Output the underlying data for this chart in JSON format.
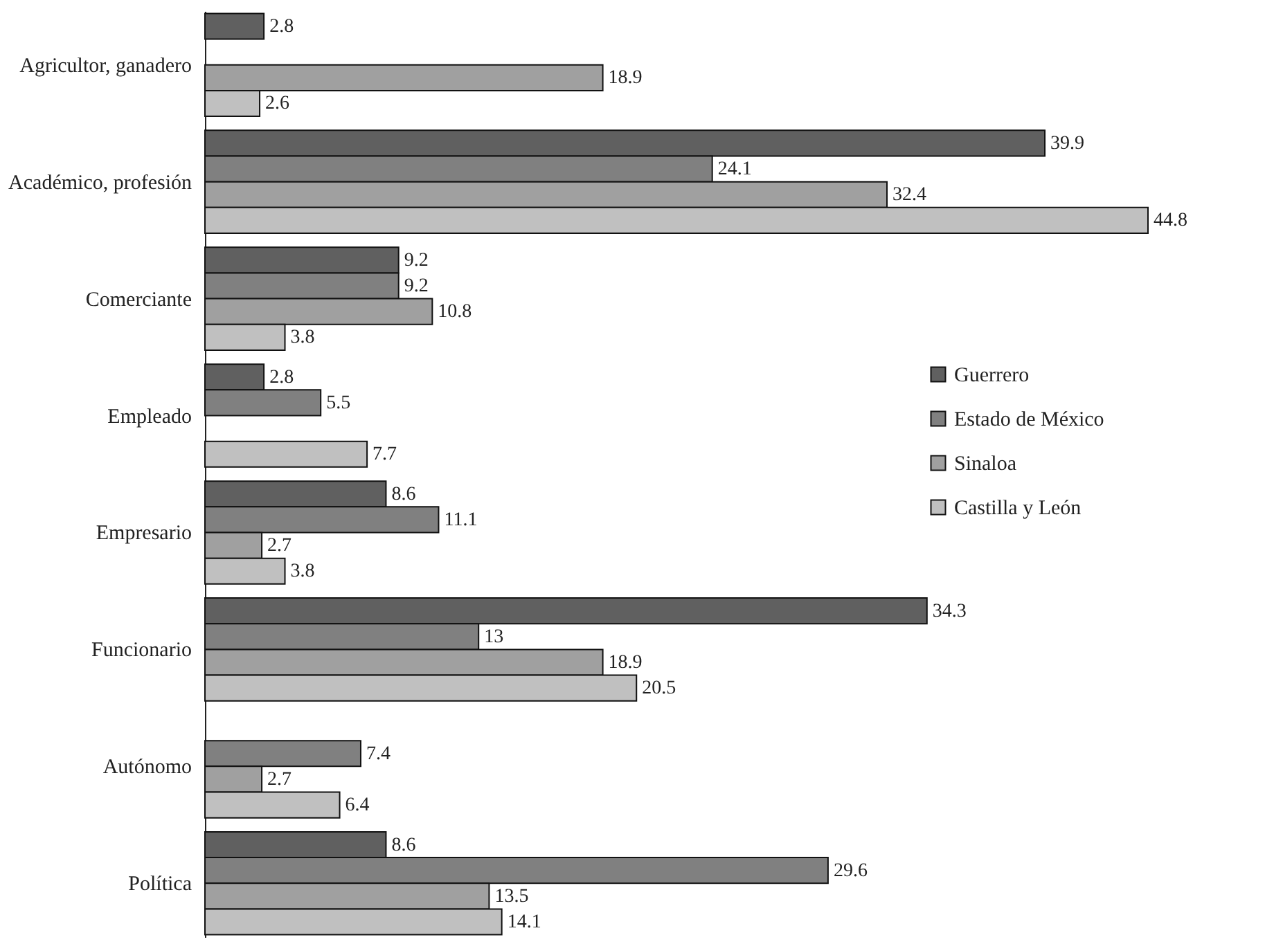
{
  "chart_data": {
    "type": "bar",
    "orientation": "horizontal",
    "data_labels": true,
    "legend": "right",
    "grid": false,
    "categories": [
      "Agricultor, ganadero",
      "Académico, profesión",
      "Comerciante",
      "Empleado",
      "Empresario",
      "Funcionario",
      "Autónomo",
      "Política"
    ],
    "series": [
      {
        "name": "Guerrero",
        "color": "#606060",
        "values": [
          2.8,
          39.9,
          9.2,
          2.8,
          8.6,
          34.3,
          null,
          8.6
        ]
      },
      {
        "name": "Estado de México",
        "color": "#808080",
        "values": [
          null,
          24.1,
          9.2,
          5.5,
          11.1,
          13,
          7.4,
          29.6
        ]
      },
      {
        "name": "Sinaloa",
        "color": "#a0a0a0",
        "values": [
          18.9,
          32.4,
          10.8,
          null,
          2.7,
          18.9,
          2.7,
          13.5
        ]
      },
      {
        "name": "Castilla y León",
        "color": "#c0c0c0",
        "values": [
          2.6,
          44.8,
          3.8,
          7.7,
          3.8,
          20.5,
          6.4,
          14.1
        ]
      }
    ]
  }
}
